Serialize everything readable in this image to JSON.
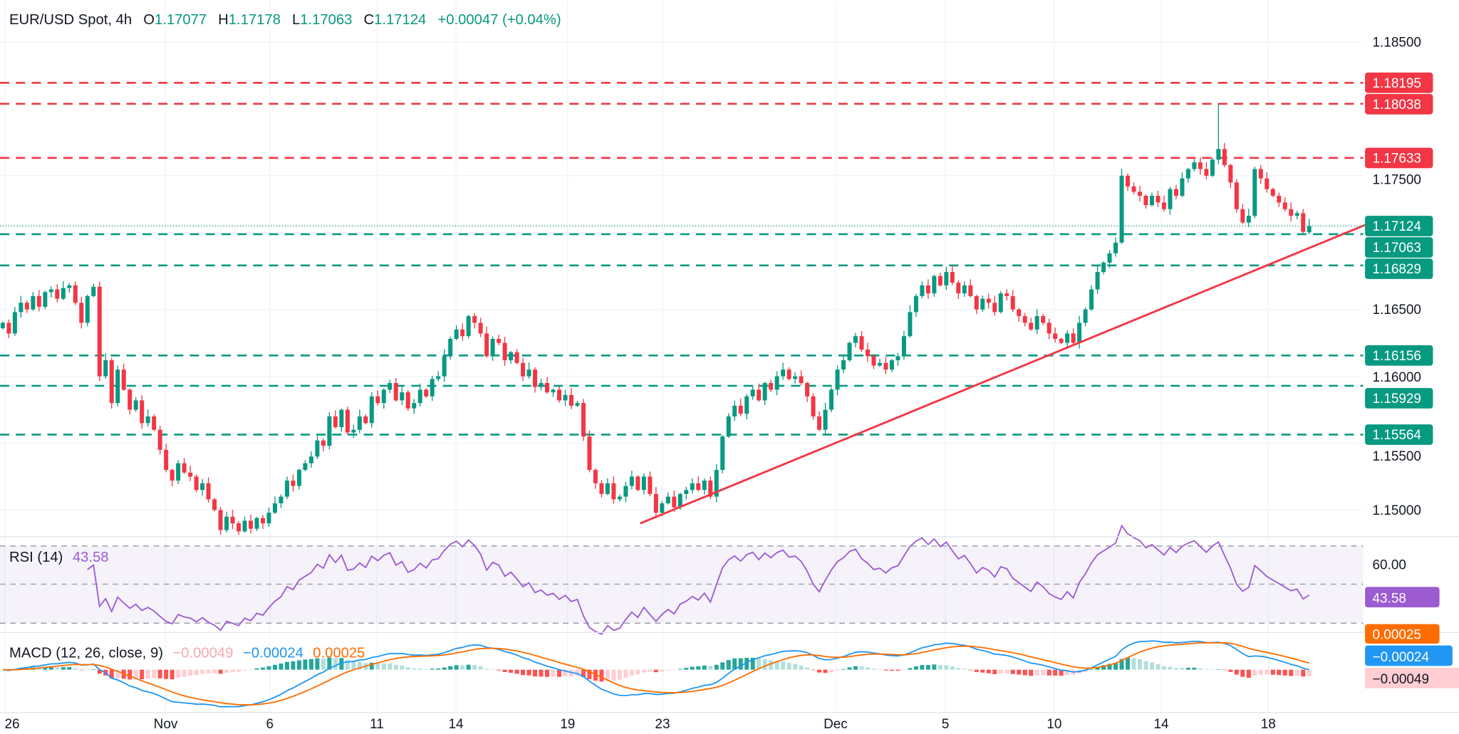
{
  "header": {
    "symbol": "EUR/USD Spot, 4h",
    "o_label": "O",
    "o_value": "1.17077",
    "h_label": "H",
    "h_value": "1.17178",
    "l_label": "L",
    "l_value": "1.17063",
    "c_label": "C",
    "c_value": "1.17124",
    "change": "+0.00047 (+0.04%)"
  },
  "colors": {
    "up": "#089981",
    "down": "#f23645",
    "resistance": "#f23645",
    "support": "#089981",
    "trendline": "#f23645",
    "rsi": "#9c5bd0",
    "macd": "#2196f3",
    "signal": "#ff6d00",
    "hist_up_strong": "#26a69a",
    "hist_up_weak": "#b2dfdb",
    "hist_down_strong": "#ff5252",
    "hist_down_weak": "#ffcdd2"
  },
  "chart_data": {
    "type": "candlestick",
    "symbol": "EUR/USD",
    "timeframe": "4h",
    "price_ticks": [
      "1.18500",
      "1.17500",
      "1.16500",
      "1.16000",
      "1.15500",
      "1.15000"
    ],
    "x_ticks": [
      "26",
      "Nov",
      "6",
      "11",
      "14",
      "19",
      "23",
      "Dec",
      "5",
      "10",
      "14",
      "18"
    ],
    "last": {
      "open": 1.17077,
      "high": 1.17178,
      "low": 1.17063,
      "close": 1.17124
    },
    "closes": [
      1.164,
      1.1632,
      1.1648,
      1.1655,
      1.165,
      1.166,
      1.1652,
      1.1663,
      1.1665,
      1.1658,
      1.1666,
      1.1668,
      1.1655,
      1.164,
      1.166,
      1.1667,
      1.16,
      1.1612,
      1.158,
      1.1605,
      1.159,
      1.1575,
      1.1582,
      1.1565,
      1.157,
      1.156,
      1.1545,
      1.153,
      1.1522,
      1.1535,
      1.1528,
      1.1525,
      1.1515,
      1.152,
      1.1508,
      1.15,
      1.1485,
      1.1495,
      1.149,
      1.1484,
      1.1492,
      1.1486,
      1.1494,
      1.149,
      1.1498,
      1.1505,
      1.151,
      1.1522,
      1.1518,
      1.153,
      1.1535,
      1.154,
      1.1552,
      1.1548,
      1.157,
      1.1562,
      1.1575,
      1.1558,
      1.156,
      1.157,
      1.1565,
      1.1585,
      1.158,
      1.159,
      1.1595,
      1.1582,
      1.1588,
      1.1576,
      1.158,
      1.159,
      1.1585,
      1.1598,
      1.16,
      1.1615,
      1.1628,
      1.1635,
      1.163,
      1.1645,
      1.164,
      1.1632,
      1.1615,
      1.1628,
      1.1625,
      1.1612,
      1.1618,
      1.161,
      1.16,
      1.1605,
      1.1592,
      1.1595,
      1.1588,
      1.159,
      1.1582,
      1.1586,
      1.1578,
      1.158,
      1.1555,
      1.153,
      1.152,
      1.1512,
      1.152,
      1.1508,
      1.151,
      1.1518,
      1.1525,
      1.1515,
      1.1525,
      1.1512,
      1.1498,
      1.1505,
      1.151,
      1.1502,
      1.1512,
      1.1515,
      1.152,
      1.1515,
      1.1522,
      1.151,
      1.153,
      1.1555,
      1.157,
      1.1578,
      1.1572,
      1.1585,
      1.159,
      1.1582,
      1.1595,
      1.159,
      1.16,
      1.1605,
      1.1598,
      1.16,
      1.1595,
      1.1585,
      1.157,
      1.156,
      1.1575,
      1.159,
      1.1605,
      1.1612,
      1.1625,
      1.163,
      1.162,
      1.1615,
      1.1608,
      1.161,
      1.1605,
      1.1612,
      1.1615,
      1.163,
      1.1648,
      1.166,
      1.1668,
      1.1662,
      1.1675,
      1.1668,
      1.1678,
      1.167,
      1.1662,
      1.1668,
      1.166,
      1.165,
      1.1658,
      1.1655,
      1.1648,
      1.1662,
      1.166,
      1.165,
      1.1645,
      1.164,
      1.1635,
      1.1645,
      1.164,
      1.1632,
      1.1628,
      1.1625,
      1.1632,
      1.1625,
      1.164,
      1.165,
      1.1665,
      1.1678,
      1.1685,
      1.1692,
      1.17,
      1.175,
      1.1742,
      1.1738,
      1.1735,
      1.1728,
      1.1735,
      1.173,
      1.1725,
      1.174,
      1.1735,
      1.1748,
      1.1755,
      1.176,
      1.1755,
      1.175,
      1.1762,
      1.177,
      1.1758,
      1.1745,
      1.1725,
      1.1715,
      1.172,
      1.1755,
      1.1748,
      1.174,
      1.1735,
      1.173,
      1.1725,
      1.172,
      1.1722,
      1.1708,
      1.17124
    ],
    "current_price": "1.17124",
    "resistance_levels": [
      "1.18195",
      "1.18038",
      "1.17633"
    ],
    "support_levels": [
      "1.17063",
      "1.16829",
      "1.16156",
      "1.15929",
      "1.15564"
    ],
    "trendline": {
      "from_price": 1.149,
      "to_price": 1.1714,
      "color": "red",
      "direction": "ascending"
    },
    "rsi": {
      "label": "RSI (14)",
      "value": "43.58",
      "levels": [
        70,
        50,
        30
      ],
      "tick": "60.00"
    },
    "macd": {
      "label": "MACD (12, 26, close, 9)",
      "histogram": "−0.00049",
      "macd": "−0.00024",
      "signal": "0.00025"
    }
  }
}
